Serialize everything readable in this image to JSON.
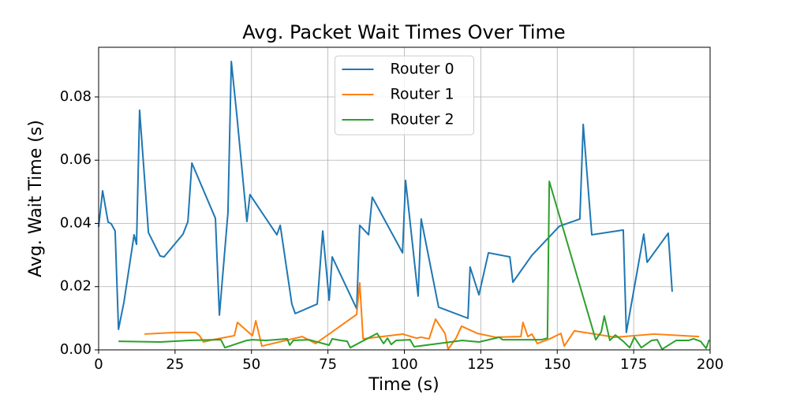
{
  "chart_data": {
    "type": "line",
    "title": "Avg. Packet Wait Times Over Time",
    "x_label": "Time (s)",
    "y_label": "Avg. Wait Time (s)",
    "xlim": [
      0,
      200
    ],
    "ylim": [
      0,
      0.0957
    ],
    "xticks": [
      0,
      25,
      50,
      75,
      100,
      125,
      150,
      175,
      200
    ],
    "yticks": [
      {
        "value": 0,
        "label": "0.00"
      },
      {
        "value": 0.02,
        "label": "0.02"
      },
      {
        "value": 0.04,
        "label": "0.04"
      },
      {
        "value": 0.06,
        "label": "0.06"
      },
      {
        "value": 0.08,
        "label": "0.08"
      }
    ],
    "grid": true,
    "legend": "upper center",
    "series": [
      {
        "name": "Router 0",
        "color": "#1f77b4",
        "x": [
          0,
          1.3,
          3.1,
          4.1,
          5.4,
          6.5,
          8.3,
          11.6,
          12.4,
          13.4,
          16.3,
          20.1,
          21.4,
          27.6,
          29.2,
          30.5,
          38.2,
          39.5,
          42.3,
          43.4,
          45.2,
          48.5,
          49.5,
          58.3,
          59.4,
          63.2,
          64.3,
          71.5,
          73.3,
          75.4,
          76.4,
          84.4,
          85.4,
          88.3,
          89.5,
          99.4,
          100.4,
          104.5,
          105.5,
          111.2,
          120.8,
          121.5,
          124.4,
          127.5,
          134.5,
          135.5,
          141.7,
          150.7,
          157.4,
          158.5,
          161.3,
          171.6,
          172.6,
          178.3,
          179.4,
          186.3,
          187.6
        ],
        "values": [
          0.0389,
          0.0503,
          0.0404,
          0.0399,
          0.0376,
          0.0065,
          0.0152,
          0.0364,
          0.0334,
          0.0758,
          0.0371,
          0.0297,
          0.0294,
          0.0366,
          0.0406,
          0.0591,
          0.0416,
          0.011,
          0.0434,
          0.0912,
          0.0743,
          0.0406,
          0.0491,
          0.0364,
          0.0394,
          0.0145,
          0.0115,
          0.0145,
          0.0376,
          0.0157,
          0.0294,
          0.013,
          0.0394,
          0.0364,
          0.0483,
          0.0307,
          0.0536,
          0.017,
          0.0414,
          0.0135,
          0.01,
          0.0262,
          0.0174,
          0.0307,
          0.0294,
          0.0214,
          0.0299,
          0.0391,
          0.0414,
          0.0713,
          0.0364,
          0.0379,
          0.0055,
          0.0366,
          0.0277,
          0.0369,
          0.0184
        ]
      },
      {
        "name": "Router 1",
        "color": "#ff7f0e",
        "x": [
          15.0,
          25.3,
          31.7,
          33.0,
          34.3,
          37.4,
          44.4,
          45.4,
          50.3,
          51.4,
          53.4,
          66.6,
          71.0,
          84.4,
          85.4,
          86.5,
          99.4,
          104.0,
          105.5,
          108.1,
          110.2,
          113.3,
          114.3,
          116.9,
          118.7,
          123.9,
          129.8,
          138.1,
          138.8,
          140.4,
          141.7,
          143.5,
          147.6,
          151.2,
          152.3,
          155.6,
          168.8,
          181.7,
          196.4
        ],
        "values": [
          0.005,
          0.0055,
          0.0055,
          0.0045,
          0.0025,
          0.0032,
          0.0045,
          0.0087,
          0.0045,
          0.0092,
          0.0012,
          0.0042,
          0.002,
          0.0112,
          0.0212,
          0.0035,
          0.005,
          0.0037,
          0.004,
          0.0035,
          0.0097,
          0.0052,
          0.0002,
          0.0037,
          0.0075,
          0.0052,
          0.004,
          0.0042,
          0.0087,
          0.0042,
          0.005,
          0.002,
          0.0035,
          0.0052,
          0.0012,
          0.006,
          0.004,
          0.005,
          0.0042
        ]
      },
      {
        "name": "Router 2",
        "color": "#2ca02c",
        "x": [
          6.5,
          20.1,
          29.7,
          38.2,
          40.0,
          41.3,
          48.5,
          50.3,
          54.7,
          61.7,
          62.5,
          63.7,
          68.9,
          75.4,
          76.4,
          79.2,
          81.3,
          82.3,
          91.1,
          93.2,
          94.5,
          95.7,
          97.3,
          101.9,
          103.2,
          119.0,
          124.4,
          131.1,
          132.1,
          144.8,
          146.8,
          147.4,
          162.6,
          164.4,
          165.4,
          167.2,
          169.0,
          171.6,
          173.7,
          175.2,
          177.5,
          180.9,
          182.7,
          184.3,
          188.9,
          193.0,
          194.6,
          196.9,
          198.7,
          199.7
        ],
        "values": [
          0.0027,
          0.0025,
          0.003,
          0.0032,
          0.0032,
          0.0007,
          0.003,
          0.0032,
          0.003,
          0.0035,
          0.0015,
          0.003,
          0.0032,
          0.0015,
          0.0035,
          0.003,
          0.0027,
          0.0007,
          0.0052,
          0.002,
          0.0037,
          0.0017,
          0.003,
          0.0032,
          0.001,
          0.003,
          0.0025,
          0.004,
          0.0032,
          0.0032,
          0.0037,
          0.0533,
          0.0032,
          0.0057,
          0.0107,
          0.003,
          0.0047,
          0.0027,
          0.0007,
          0.004,
          0.0007,
          0.003,
          0.0032,
          0.0002,
          0.003,
          0.003,
          0.0035,
          0.0027,
          0.0005,
          0.0032
        ]
      }
    ]
  }
}
